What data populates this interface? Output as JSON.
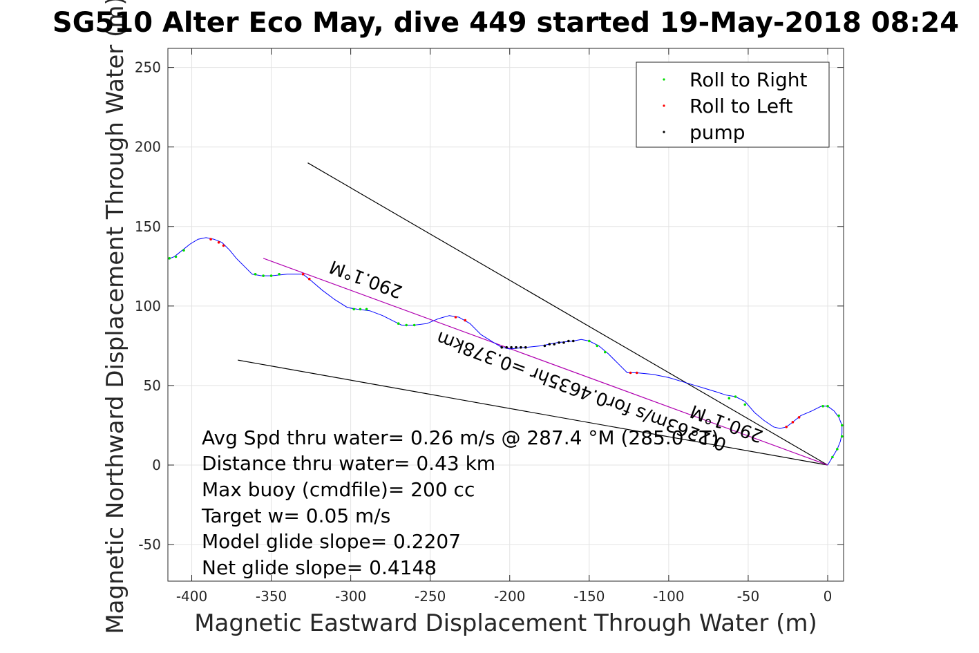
{
  "chart_data": {
    "type": "line",
    "title": "SG510 Alter Eco May, dive 449 started 19-May-2018 08:24",
    "xlabel": "Magnetic Eastward Displacement Through Water (m)",
    "ylabel": "Magnetic Northward Displacement Through Water (m)",
    "xlim": [
      -415,
      10
    ],
    "ylim": [
      -73,
      262
    ],
    "xticks": [
      -400,
      -350,
      -300,
      -250,
      -200,
      -150,
      -100,
      -50,
      0
    ],
    "yticks": [
      -50,
      0,
      50,
      100,
      150,
      200,
      250
    ],
    "xtick_labels": [
      "-400",
      "-350",
      "-300",
      "-250",
      "-200",
      "-150",
      "-100",
      "-50",
      "0"
    ],
    "ytick_labels": [
      "-50",
      "0",
      "50",
      "100",
      "150",
      "200",
      "250"
    ],
    "grid": true,
    "legend_position": "top-right",
    "legend": [
      {
        "label": "Roll to Right",
        "color": "#00dd00"
      },
      {
        "label": "Roll to Left",
        "color": "#ff0000"
      },
      {
        "label": "pump",
        "color": "#000000"
      }
    ],
    "track": {
      "name": "glider track",
      "color": "#0000ff",
      "points": [
        [
          0,
          0
        ],
        [
          3,
          5
        ],
        [
          6,
          10
        ],
        [
          8,
          15
        ],
        [
          9,
          20
        ],
        [
          9,
          25
        ],
        [
          7,
          30
        ],
        [
          4,
          34
        ],
        [
          0,
          37
        ],
        [
          -4,
          37
        ],
        [
          -10,
          34
        ],
        [
          -17,
          31
        ],
        [
          -22,
          27
        ],
        [
          -26,
          24
        ],
        [
          -30,
          23
        ],
        [
          -34,
          24
        ],
        [
          -40,
          28
        ],
        [
          -46,
          33
        ],
        [
          -52,
          40
        ],
        [
          -58,
          43
        ],
        [
          -64,
          44
        ],
        [
          -70,
          46
        ],
        [
          -80,
          49
        ],
        [
          -90,
          52
        ],
        [
          -100,
          55
        ],
        [
          -110,
          57
        ],
        [
          -120,
          58
        ],
        [
          -126,
          58
        ],
        [
          -132,
          64
        ],
        [
          -138,
          70
        ],
        [
          -144,
          75
        ],
        [
          -150,
          78
        ],
        [
          -155,
          79
        ],
        [
          -160,
          78
        ],
        [
          -170,
          77
        ],
        [
          -180,
          75
        ],
        [
          -190,
          74
        ],
        [
          -200,
          73
        ],
        [
          -205,
          74
        ],
        [
          -210,
          77
        ],
        [
          -218,
          82
        ],
        [
          -225,
          89
        ],
        [
          -232,
          93
        ],
        [
          -238,
          94
        ],
        [
          -245,
          92
        ],
        [
          -252,
          89
        ],
        [
          -260,
          88
        ],
        [
          -268,
          88
        ],
        [
          -272,
          90
        ],
        [
          -280,
          94
        ],
        [
          -288,
          97
        ],
        [
          -296,
          98
        ],
        [
          -302,
          99
        ],
        [
          -310,
          104
        ],
        [
          -318,
          110
        ],
        [
          -325,
          116
        ],
        [
          -330,
          120
        ],
        [
          -340,
          120
        ],
        [
          -350,
          119
        ],
        [
          -356,
          119
        ],
        [
          -362,
          120
        ],
        [
          -367,
          125
        ],
        [
          -372,
          130
        ],
        [
          -376,
          135
        ],
        [
          -381,
          140
        ],
        [
          -386,
          142
        ],
        [
          -391,
          143
        ],
        [
          -396,
          142
        ],
        [
          -401,
          139
        ],
        [
          -406,
          135
        ],
        [
          -411,
          131
        ],
        [
          -416,
          129
        ]
      ],
      "right_roll_points": [
        [
          0,
          37
        ],
        [
          -3,
          37
        ],
        [
          7,
          31
        ],
        [
          9,
          25
        ],
        [
          9,
          18
        ],
        [
          6,
          10
        ],
        [
          3,
          5
        ],
        [
          -58,
          43
        ],
        [
          -62,
          42
        ],
        [
          -52,
          38
        ],
        [
          -150,
          78
        ],
        [
          -145,
          75
        ],
        [
          -140,
          71
        ],
        [
          -265,
          88
        ],
        [
          -270,
          89
        ],
        [
          -260,
          88
        ],
        [
          -298,
          98
        ],
        [
          -290,
          98
        ],
        [
          -294,
          98
        ],
        [
          -345,
          120
        ],
        [
          -350,
          119
        ],
        [
          -355,
          119
        ],
        [
          -360,
          120
        ],
        [
          -405,
          135
        ],
        [
          -410,
          131
        ],
        [
          -414,
          130
        ]
      ],
      "left_roll_points": [
        [
          -22,
          27
        ],
        [
          -18,
          30
        ],
        [
          -26,
          24
        ],
        [
          -120,
          58
        ],
        [
          -124,
          58
        ],
        [
          -228,
          91
        ],
        [
          -234,
          93
        ],
        [
          -326,
          117
        ],
        [
          -330,
          120
        ],
        [
          -383,
          140
        ],
        [
          -388,
          142
        ],
        [
          -380,
          138
        ]
      ],
      "pump_points": [
        [
          -205,
          74
        ],
        [
          -202,
          74
        ],
        [
          -199,
          74
        ],
        [
          -196,
          74
        ],
        [
          -193,
          74
        ],
        [
          -190,
          74
        ],
        [
          -178,
          75
        ],
        [
          -175,
          76
        ],
        [
          -172,
          76
        ],
        [
          -169,
          77
        ],
        [
          -166,
          77
        ],
        [
          -163,
          78
        ],
        [
          -160,
          78
        ]
      ]
    },
    "reference_lines": [
      {
        "name": "current-bound-upper",
        "color": "#000000",
        "points": [
          [
            0,
            0
          ],
          [
            -327,
            190
          ]
        ]
      },
      {
        "name": "current-bound-lower",
        "color": "#000000",
        "points": [
          [
            0,
            0
          ],
          [
            -371,
            66
          ]
        ]
      },
      {
        "name": "avg-heading-line",
        "color": "#b000b0",
        "points": [
          [
            0,
            0
          ],
          [
            -355,
            130
          ]
        ]
      }
    ],
    "annotations": [
      {
        "text": "290.1°M",
        "x": -270,
        "y": 120
      },
      {
        "text": "0.2263m/s for0.4635hr =0.378km",
        "x": -140,
        "y": 50
      },
      {
        "text": "290.1°M",
        "x": -50,
        "y": 30
      }
    ],
    "stats_lines": [
      "Avg Spd thru water=  0.26 m/s @ 287.4 °M (285.0 °T)",
      "Distance thru water=  0.43 km",
      "Max buoy (cmdfile)= 200 cc",
      "Target w= 0.05 m/s",
      "Model glide slope= 0.2207",
      "Net glide slope= 0.4148"
    ]
  }
}
